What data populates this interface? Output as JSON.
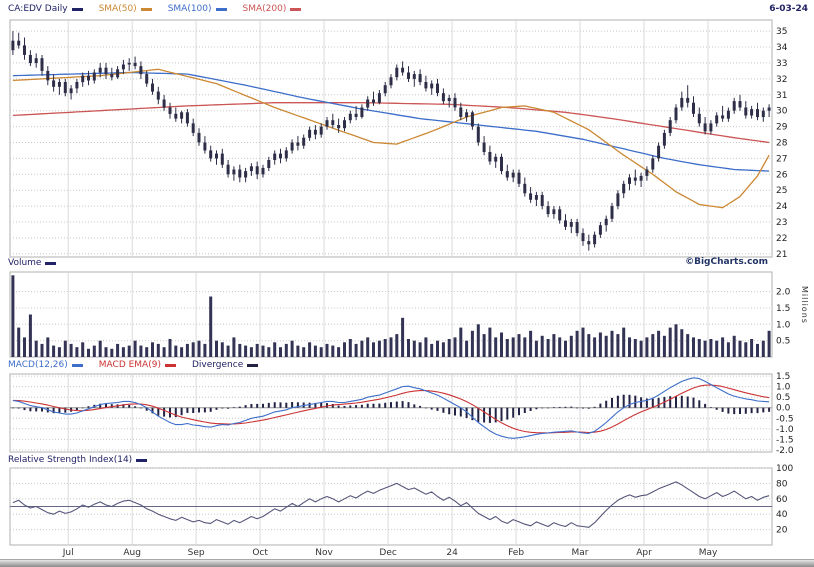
{
  "header": {
    "symbol_label": "CA:EDV Daily",
    "price_color": "#222266",
    "date": "6-03-24",
    "legend": [
      {
        "label": "SMA(50)",
        "color": "#cc8833"
      },
      {
        "label": "SMA(100)",
        "color": "#3d6ec9"
      },
      {
        "label": "SMA(200)",
        "color": "#cc5555"
      }
    ]
  },
  "watermark": "©BigCharts.com",
  "panels": {
    "volume": {
      "label": "Volume",
      "unit": "Millions",
      "color": "#222266"
    },
    "macd": {
      "legend": [
        {
          "label": "MACD(12,26)",
          "color": "#3d6ec9"
        },
        {
          "label": "MACD EMA(9)",
          "color": "#cc3333"
        },
        {
          "label": "Divergence",
          "color": "#222244"
        }
      ]
    },
    "rsi": {
      "label": "Relative Strength Index(14)",
      "color": "#222266"
    }
  },
  "axis_labels": {
    "price": [
      "35",
      "34",
      "33",
      "32",
      "31",
      "30",
      "29",
      "28",
      "27",
      "26",
      "25",
      "24",
      "23",
      "22",
      "21"
    ],
    "volume": [
      "2.0",
      "1.5",
      "1.0",
      "0.5"
    ],
    "macd": [
      "1.5",
      "1.0",
      "0.5",
      "0.0",
      "-0.5",
      "-1.0",
      "-1.5",
      "-2.0"
    ],
    "rsi": [
      "100",
      "80",
      "60",
      "40",
      "20"
    ]
  },
  "x_axis": {
    "months": [
      "Jul",
      "Aug",
      "Sep",
      "Oct",
      "Nov",
      "Dec",
      "24",
      "Feb",
      "Mar",
      "Apr",
      "May"
    ],
    "month_start_indices": [
      10,
      21,
      32,
      43,
      54,
      65,
      76,
      87,
      98,
      109,
      120
    ]
  },
  "chart_data": {
    "type": "candlestick+volume+macd+rsi",
    "title": "CA:EDV Daily",
    "axes": {
      "price": [
        20.8,
        35.7
      ],
      "volume_max": 2.6,
      "macd": [
        -2.1,
        1.6
      ],
      "rsi": [
        0,
        100
      ]
    },
    "colors": {
      "candle": "#2e2e48",
      "volume": "#333355",
      "sma50": "#cc8833",
      "sma100": "#3d6ec9",
      "sma200": "#cc5555",
      "macd": "#3d6ec9",
      "macd_signal": "#cc3333",
      "divergence": "#222244",
      "rsi": "#55557a",
      "rsi_midline": "#666688",
      "grid": "#c8c8c8",
      "frame": "#b0b0b0"
    },
    "candles": [
      [
        33.8,
        35.0,
        33.5,
        34.4
      ],
      [
        34.4,
        34.9,
        33.9,
        34.1
      ],
      [
        34.1,
        34.6,
        33.2,
        33.5
      ],
      [
        33.5,
        33.8,
        32.8,
        33.0
      ],
      [
        33.0,
        33.6,
        32.7,
        33.3
      ],
      [
        33.3,
        33.5,
        32.2,
        32.5
      ],
      [
        32.5,
        32.8,
        31.6,
        31.9
      ],
      [
        31.9,
        32.3,
        31.2,
        31.5
      ],
      [
        31.5,
        32.0,
        31.0,
        31.8
      ],
      [
        31.8,
        32.0,
        30.9,
        31.1
      ],
      [
        31.1,
        31.6,
        30.7,
        31.4
      ],
      [
        31.4,
        32.0,
        31.1,
        31.8
      ],
      [
        31.8,
        32.4,
        31.5,
        32.2
      ],
      [
        32.2,
        32.5,
        31.6,
        31.9
      ],
      [
        31.9,
        32.6,
        31.7,
        32.4
      ],
      [
        32.4,
        33.0,
        32.1,
        32.7
      ],
      [
        32.7,
        33.0,
        32.0,
        32.3
      ],
      [
        32.3,
        32.7,
        31.9,
        32.1
      ],
      [
        32.1,
        32.8,
        32.0,
        32.6
      ],
      [
        32.6,
        33.2,
        32.3,
        32.9
      ],
      [
        32.9,
        33.3,
        32.5,
        33.0
      ],
      [
        33.0,
        33.4,
        32.6,
        32.8
      ],
      [
        32.8,
        33.1,
        32.0,
        32.3
      ],
      [
        32.3,
        32.5,
        31.5,
        31.7
      ],
      [
        31.7,
        32.0,
        31.0,
        31.2
      ],
      [
        31.2,
        31.5,
        30.4,
        30.7
      ],
      [
        30.7,
        31.0,
        30.0,
        30.2
      ],
      [
        30.2,
        30.5,
        29.5,
        29.8
      ],
      [
        29.8,
        30.2,
        29.3,
        29.5
      ],
      [
        29.5,
        30.0,
        29.2,
        29.9
      ],
      [
        29.9,
        30.1,
        29.0,
        29.2
      ],
      [
        29.2,
        29.5,
        28.4,
        28.6
      ],
      [
        28.6,
        28.9,
        27.8,
        28.0
      ],
      [
        28.0,
        28.4,
        27.3,
        27.5
      ],
      [
        27.5,
        27.8,
        26.8,
        27.0
      ],
      [
        27.0,
        27.5,
        26.6,
        27.3
      ],
      [
        27.3,
        27.6,
        26.4,
        26.6
      ],
      [
        26.6,
        26.9,
        25.8,
        26.0
      ],
      [
        26.0,
        26.5,
        25.6,
        26.3
      ],
      [
        26.3,
        26.6,
        25.5,
        25.8
      ],
      [
        25.8,
        26.4,
        25.5,
        26.2
      ],
      [
        26.2,
        26.7,
        25.9,
        26.5
      ],
      [
        26.5,
        26.8,
        25.7,
        26.0
      ],
      [
        26.0,
        26.6,
        25.8,
        26.4
      ],
      [
        26.4,
        27.1,
        26.2,
        26.9
      ],
      [
        26.9,
        27.5,
        26.6,
        27.3
      ],
      [
        27.3,
        27.6,
        26.7,
        27.0
      ],
      [
        27.0,
        27.7,
        26.8,
        27.5
      ],
      [
        27.5,
        28.2,
        27.3,
        28.0
      ],
      [
        28.0,
        28.4,
        27.5,
        27.8
      ],
      [
        27.8,
        28.5,
        27.6,
        28.3
      ],
      [
        28.3,
        29.0,
        28.1,
        28.8
      ],
      [
        28.8,
        29.1,
        28.2,
        28.5
      ],
      [
        28.5,
        29.2,
        28.3,
        29.0
      ],
      [
        29.0,
        29.6,
        28.8,
        29.4
      ],
      [
        29.4,
        29.8,
        28.9,
        29.1
      ],
      [
        29.1,
        29.5,
        28.6,
        28.9
      ],
      [
        28.9,
        29.6,
        28.7,
        29.4
      ],
      [
        29.4,
        30.0,
        29.2,
        29.8
      ],
      [
        29.8,
        30.3,
        29.4,
        29.6
      ],
      [
        29.6,
        30.4,
        29.5,
        30.2
      ],
      [
        30.2,
        30.9,
        30.0,
        30.7
      ],
      [
        30.7,
        31.2,
        30.3,
        30.5
      ],
      [
        30.5,
        31.3,
        30.4,
        31.1
      ],
      [
        31.1,
        31.8,
        30.9,
        31.6
      ],
      [
        31.6,
        32.3,
        31.4,
        32.1
      ],
      [
        32.1,
        32.9,
        31.9,
        32.7
      ],
      [
        32.7,
        33.1,
        32.2,
        32.4
      ],
      [
        32.4,
        32.8,
        31.8,
        32.0
      ],
      [
        32.0,
        32.5,
        31.5,
        32.3
      ],
      [
        32.3,
        32.6,
        31.6,
        31.8
      ],
      [
        31.8,
        32.2,
        31.2,
        31.4
      ],
      [
        31.4,
        31.9,
        31.0,
        31.7
      ],
      [
        31.7,
        32.0,
        30.9,
        31.1
      ],
      [
        31.1,
        31.4,
        30.4,
        30.6
      ],
      [
        30.6,
        31.0,
        30.2,
        30.8
      ],
      [
        30.8,
        31.1,
        30.0,
        30.2
      ],
      [
        30.2,
        30.5,
        29.4,
        29.6
      ],
      [
        29.6,
        30.1,
        29.3,
        29.9
      ],
      [
        29.9,
        30.0,
        28.8,
        29.0
      ],
      [
        29.0,
        29.2,
        27.8,
        28.0
      ],
      [
        28.0,
        28.4,
        27.2,
        27.4
      ],
      [
        27.4,
        27.8,
        26.6,
        26.8
      ],
      [
        26.8,
        27.3,
        26.4,
        27.1
      ],
      [
        27.1,
        27.3,
        26.0,
        26.2
      ],
      [
        26.2,
        26.6,
        25.6,
        25.8
      ],
      [
        25.8,
        26.3,
        25.5,
        26.1
      ],
      [
        26.1,
        26.3,
        25.2,
        25.4
      ],
      [
        25.4,
        25.8,
        24.6,
        24.8
      ],
      [
        24.8,
        25.2,
        24.2,
        24.4
      ],
      [
        24.4,
        24.9,
        24.0,
        24.7
      ],
      [
        24.7,
        24.9,
        23.8,
        24.0
      ],
      [
        24.0,
        24.3,
        23.3,
        23.5
      ],
      [
        23.5,
        24.0,
        23.2,
        23.8
      ],
      [
        23.8,
        24.0,
        22.9,
        23.1
      ],
      [
        23.1,
        23.5,
        22.5,
        22.7
      ],
      [
        22.7,
        23.2,
        22.3,
        23.0
      ],
      [
        23.0,
        23.2,
        22.1,
        22.3
      ],
      [
        22.3,
        22.6,
        21.5,
        21.8
      ],
      [
        21.8,
        22.2,
        21.2,
        21.6
      ],
      [
        21.6,
        22.4,
        21.4,
        22.2
      ],
      [
        22.2,
        23.0,
        22.0,
        22.8
      ],
      [
        22.8,
        23.4,
        22.4,
        23.2
      ],
      [
        23.2,
        24.2,
        23.0,
        24.0
      ],
      [
        24.0,
        25.0,
        23.8,
        24.8
      ],
      [
        24.8,
        25.6,
        24.5,
        25.4
      ],
      [
        25.4,
        26.0,
        25.0,
        25.8
      ],
      [
        25.8,
        26.3,
        25.3,
        25.6
      ],
      [
        25.6,
        26.1,
        25.2,
        25.9
      ],
      [
        25.9,
        26.5,
        25.6,
        26.3
      ],
      [
        26.3,
        27.2,
        26.1,
        27.0
      ],
      [
        27.0,
        28.0,
        26.8,
        27.8
      ],
      [
        27.8,
        28.8,
        27.6,
        28.6
      ],
      [
        28.6,
        29.6,
        28.4,
        29.4
      ],
      [
        29.4,
        30.4,
        29.2,
        30.2
      ],
      [
        30.2,
        31.2,
        30.0,
        30.8
      ],
      [
        30.8,
        31.6,
        30.2,
        30.5
      ],
      [
        30.5,
        30.9,
        29.6,
        29.8
      ],
      [
        29.8,
        30.2,
        29.0,
        29.2
      ],
      [
        29.2,
        29.6,
        28.5,
        28.7
      ],
      [
        28.7,
        29.4,
        28.5,
        29.2
      ],
      [
        29.2,
        29.9,
        29.0,
        29.7
      ],
      [
        29.7,
        30.3,
        29.3,
        29.5
      ],
      [
        29.5,
        30.2,
        29.3,
        30.0
      ],
      [
        30.0,
        30.8,
        29.8,
        30.6
      ],
      [
        30.6,
        31.0,
        30.0,
        30.2
      ],
      [
        30.2,
        30.6,
        29.5,
        29.7
      ],
      [
        29.7,
        30.3,
        29.5,
        30.1
      ],
      [
        30.1,
        30.5,
        29.4,
        29.6
      ],
      [
        29.6,
        30.2,
        29.3,
        30.0
      ],
      [
        30.0,
        30.4,
        29.6,
        30.2
      ]
    ],
    "volume": [
      2.5,
      0.9,
      0.6,
      1.3,
      0.5,
      0.4,
      0.6,
      0.35,
      0.3,
      0.5,
      0.4,
      0.3,
      0.45,
      0.25,
      0.35,
      0.5,
      0.3,
      0.25,
      0.4,
      0.3,
      0.35,
      0.5,
      0.35,
      0.3,
      0.45,
      0.4,
      0.3,
      0.55,
      0.35,
      0.3,
      0.4,
      0.45,
      0.5,
      0.4,
      1.85,
      0.5,
      0.45,
      0.35,
      0.6,
      0.4,
      0.35,
      0.3,
      0.4,
      0.35,
      0.3,
      0.45,
      0.3,
      0.4,
      0.5,
      0.35,
      0.3,
      0.45,
      0.35,
      0.3,
      0.4,
      0.35,
      0.3,
      0.45,
      0.55,
      0.4,
      0.5,
      0.6,
      0.45,
      0.5,
      0.55,
      0.6,
      0.7,
      1.2,
      0.55,
      0.5,
      0.45,
      0.6,
      0.4,
      0.5,
      0.45,
      0.55,
      0.6,
      0.9,
      0.5,
      0.8,
      1.0,
      0.7,
      0.9,
      0.6,
      0.75,
      0.55,
      0.6,
      0.7,
      0.6,
      0.8,
      0.5,
      0.65,
      0.55,
      0.7,
      0.6,
      0.5,
      0.65,
      0.8,
      0.9,
      0.7,
      0.6,
      0.75,
      0.65,
      0.8,
      0.7,
      0.9,
      0.6,
      0.55,
      0.5,
      0.6,
      0.7,
      0.8,
      0.65,
      0.9,
      1.0,
      0.85,
      0.7,
      0.6,
      0.55,
      0.5,
      0.55,
      0.5,
      0.6,
      0.45,
      0.65,
      0.5,
      0.45,
      0.55,
      0.4,
      0.5,
      0.8
    ],
    "macd": [
      0.35,
      0.3,
      0.2,
      0.1,
      0.05,
      0.0,
      -0.1,
      -0.2,
      -0.25,
      -0.3,
      -0.3,
      -0.25,
      -0.15,
      -0.05,
      0.05,
      0.15,
      0.2,
      0.22,
      0.25,
      0.3,
      0.3,
      0.25,
      0.15,
      0.0,
      -0.2,
      -0.4,
      -0.55,
      -0.7,
      -0.8,
      -0.8,
      -0.75,
      -0.82,
      -0.85,
      -0.9,
      -0.92,
      -0.85,
      -0.8,
      -0.82,
      -0.75,
      -0.7,
      -0.6,
      -0.5,
      -0.45,
      -0.4,
      -0.3,
      -0.2,
      -0.15,
      -0.1,
      0.0,
      0.05,
      0.1,
      0.15,
      0.2,
      0.25,
      0.3,
      0.3,
      0.25,
      0.25,
      0.3,
      0.35,
      0.4,
      0.5,
      0.55,
      0.6,
      0.7,
      0.8,
      0.9,
      1.0,
      1.02,
      0.95,
      0.9,
      0.8,
      0.7,
      0.6,
      0.45,
      0.3,
      0.15,
      0.0,
      -0.2,
      -0.45,
      -0.7,
      -0.9,
      -1.1,
      -1.25,
      -1.35,
      -1.42,
      -1.45,
      -1.42,
      -1.38,
      -1.32,
      -1.26,
      -1.22,
      -1.2,
      -1.16,
      -1.14,
      -1.12,
      -1.1,
      -1.15,
      -1.2,
      -1.22,
      -1.12,
      -0.92,
      -0.7,
      -0.45,
      -0.2,
      0.0,
      0.15,
      0.25,
      0.3,
      0.35,
      0.45,
      0.6,
      0.78,
      0.95,
      1.1,
      1.25,
      1.35,
      1.42,
      1.38,
      1.25,
      1.1,
      0.95,
      0.8,
      0.65,
      0.55,
      0.48,
      0.42,
      0.38,
      0.32,
      0.3,
      0.28
    ],
    "rsi": [
      55,
      58,
      52,
      48,
      50,
      46,
      42,
      40,
      44,
      41,
      43,
      47,
      52,
      49,
      53,
      56,
      52,
      50,
      54,
      57,
      58,
      55,
      52,
      47,
      44,
      40,
      37,
      34,
      32,
      36,
      33,
      30,
      32,
      29,
      28,
      33,
      30,
      27,
      32,
      29,
      33,
      37,
      34,
      37,
      42,
      47,
      44,
      49,
      54,
      50,
      55,
      60,
      56,
      60,
      63,
      60,
      56,
      60,
      64,
      61,
      66,
      70,
      67,
      71,
      74,
      77,
      80,
      76,
      72,
      74,
      70,
      66,
      69,
      63,
      58,
      62,
      57,
      51,
      55,
      48,
      41,
      37,
      33,
      37,
      31,
      28,
      33,
      30,
      27,
      25,
      30,
      27,
      24,
      29,
      26,
      24,
      29,
      25,
      24,
      23,
      29,
      37,
      45,
      52,
      58,
      62,
      65,
      62,
      64,
      65,
      69,
      73,
      76,
      79,
      82,
      78,
      73,
      68,
      63,
      60,
      64,
      68,
      63,
      66,
      70,
      65,
      60,
      63,
      58,
      62,
      64
    ],
    "sma50": [
      [
        0,
        31.9
      ],
      [
        15,
        32.2
      ],
      [
        25,
        32.6
      ],
      [
        35,
        31.7
      ],
      [
        45,
        30.2
      ],
      [
        55,
        28.9
      ],
      [
        62,
        28.0
      ],
      [
        66,
        27.9
      ],
      [
        72,
        28.7
      ],
      [
        78,
        29.6
      ],
      [
        84,
        30.2
      ],
      [
        88,
        30.3
      ],
      [
        93,
        29.9
      ],
      [
        99,
        28.8
      ],
      [
        105,
        27.2
      ],
      [
        110,
        26.0
      ],
      [
        114,
        24.9
      ],
      [
        118,
        24.1
      ],
      [
        122,
        23.9
      ],
      [
        125,
        24.6
      ],
      [
        128,
        25.9
      ],
      [
        130,
        27.2
      ]
    ],
    "sma100": [
      [
        0,
        32.2
      ],
      [
        20,
        32.4
      ],
      [
        30,
        32.3
      ],
      [
        40,
        31.6
      ],
      [
        50,
        30.8
      ],
      [
        60,
        30.1
      ],
      [
        70,
        29.5
      ],
      [
        80,
        29.1
      ],
      [
        90,
        28.7
      ],
      [
        98,
        28.2
      ],
      [
        105,
        27.6
      ],
      [
        112,
        27.0
      ],
      [
        118,
        26.6
      ],
      [
        124,
        26.3
      ],
      [
        130,
        26.2
      ]
    ],
    "sma200": [
      [
        0,
        29.7
      ],
      [
        15,
        30.0
      ],
      [
        30,
        30.3
      ],
      [
        45,
        30.5
      ],
      [
        60,
        30.5
      ],
      [
        75,
        30.4
      ],
      [
        85,
        30.2
      ],
      [
        95,
        29.9
      ],
      [
        103,
        29.5
      ],
      [
        110,
        29.1
      ],
      [
        117,
        28.7
      ],
      [
        124,
        28.3
      ],
      [
        130,
        28.0
      ]
    ]
  }
}
